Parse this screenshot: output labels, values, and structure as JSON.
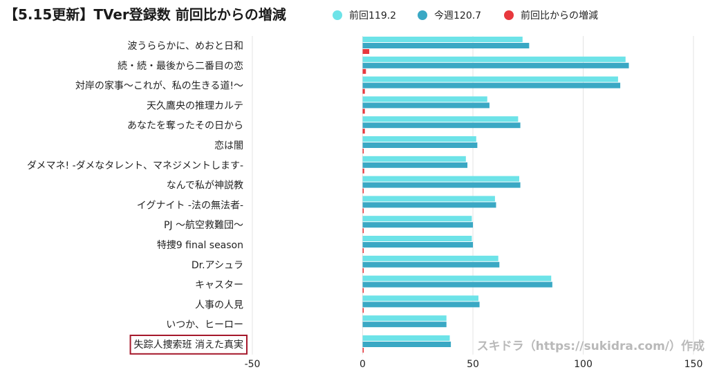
{
  "chart_data": {
    "type": "bar",
    "title": "【5.15更新】TVer登録数 前回比からの増減",
    "categories": [
      "波うららかに、めおと日和",
      "続・続・最後から二番目の恋",
      "対岸の家事～これが、私の生きる道!～",
      "天久鷹央の推理カルテ",
      "あなたを奪ったその日から",
      "恋は闇",
      "ダメマネ! -ダメなタレント、マネジメントします-",
      "なんで私が神説教",
      "イグナイト -法の無法者-",
      "PJ ～航空救難団～",
      "特捜9 final season",
      "Dr.アシュラ",
      "キャスター",
      "人事の人見",
      "いつか、ヒーロー",
      "失踪人捜索班 消えた真実"
    ],
    "highlight_index": 15,
    "series": [
      {
        "name": "前回119.2",
        "color": "#6de3e8",
        "values": [
          72.5,
          119.2,
          115.8,
          56.5,
          70.5,
          51.5,
          46.8,
          71.0,
          60.0,
          49.5,
          49.5,
          61.5,
          85.5,
          52.5,
          38.0,
          39.5
        ]
      },
      {
        "name": "今週120.7",
        "color": "#3aa8c4",
        "values": [
          75.5,
          120.7,
          116.8,
          57.5,
          71.5,
          52.0,
          47.5,
          71.5,
          60.5,
          50.0,
          50.0,
          62.0,
          86.0,
          53.0,
          38.0,
          40.0
        ]
      },
      {
        "name": "前回比からの増減",
        "color": "#e8383d",
        "values": [
          3.0,
          1.5,
          1.0,
          1.0,
          1.0,
          0.5,
          0.7,
          0.5,
          0.5,
          0.5,
          0.5,
          0.5,
          0.5,
          0.5,
          0.0,
          0.5
        ]
      }
    ],
    "x_ticks": [
      -50,
      0,
      50,
      100,
      150
    ],
    "xlim": [
      -50,
      150
    ],
    "grid": true,
    "legend_position": "top"
  },
  "watermark": "スキドラ（https://sukidra.com/）作成"
}
